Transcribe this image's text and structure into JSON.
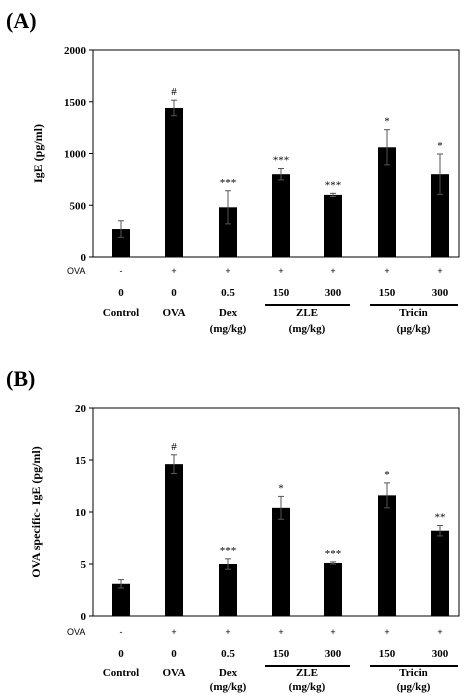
{
  "chart_data": [
    {
      "type": "bar",
      "panel_label": "(A)",
      "ylabel": "IgE (pg/ml)",
      "ylim": [
        0,
        2000
      ],
      "yticks": [
        "0",
        "500",
        "1000",
        "1500",
        "2000"
      ],
      "categories": [
        "Control",
        "OVA",
        "Dex",
        "ZLE 150",
        "ZLE 300",
        "Tricin 150",
        "Tricin 300"
      ],
      "values": [
        270,
        1440,
        480,
        800,
        600,
        1060,
        800
      ],
      "errors": [
        80,
        75,
        160,
        55,
        15,
        170,
        195
      ],
      "significance": [
        "",
        "#",
        "***",
        "***",
        "***",
        "*",
        "*"
      ],
      "ova_row_label": "OVA",
      "ova": [
        "-",
        "+",
        "+",
        "+",
        "+",
        "+",
        "+"
      ],
      "doses": [
        "0",
        "0",
        "0.5",
        "150",
        "300",
        "150",
        "300"
      ],
      "group_labels": {
        "control": "Control",
        "ova": "OVA",
        "dex": "Dex",
        "dex_unit": "(mg/kg)",
        "zle": "ZLE",
        "zle_unit": "(mg/kg)",
        "tricin": "Tricin",
        "tricin_unit": "(μg/kg)"
      },
      "bar_color": "#000000"
    },
    {
      "type": "bar",
      "panel_label": "(B)",
      "ylabel": "OVA specific- IgE (pg/ml)",
      "ylim": [
        0,
        20
      ],
      "yticks": [
        "0",
        "5",
        "10",
        "15",
        "20"
      ],
      "categories": [
        "Control",
        "OVA",
        "Dex",
        "ZLE 150",
        "ZLE 300",
        "Tricin 150",
        "Tricin 300"
      ],
      "values": [
        3.1,
        14.6,
        5.0,
        10.4,
        5.1,
        11.6,
        8.2
      ],
      "errors": [
        0.4,
        0.9,
        0.5,
        1.1,
        0.1,
        1.2,
        0.5
      ],
      "significance": [
        "",
        "#",
        "***",
        "*",
        "***",
        "*",
        "**"
      ],
      "ova_row_label": "OVA",
      "ova": [
        "-",
        "+",
        "+",
        "+",
        "+",
        "+",
        "+"
      ],
      "doses": [
        "0",
        "0",
        "0.5",
        "150",
        "300",
        "150",
        "300"
      ],
      "group_labels": {
        "control": "Control",
        "ova": "OVA",
        "dex": "Dex",
        "dex_unit": "(mg/kg)",
        "zle": "ZLE",
        "zle_unit": "(mg/kg)",
        "tricin": "Tricin",
        "tricin_unit": "(μg/kg)"
      },
      "bar_color": "#000000"
    }
  ]
}
